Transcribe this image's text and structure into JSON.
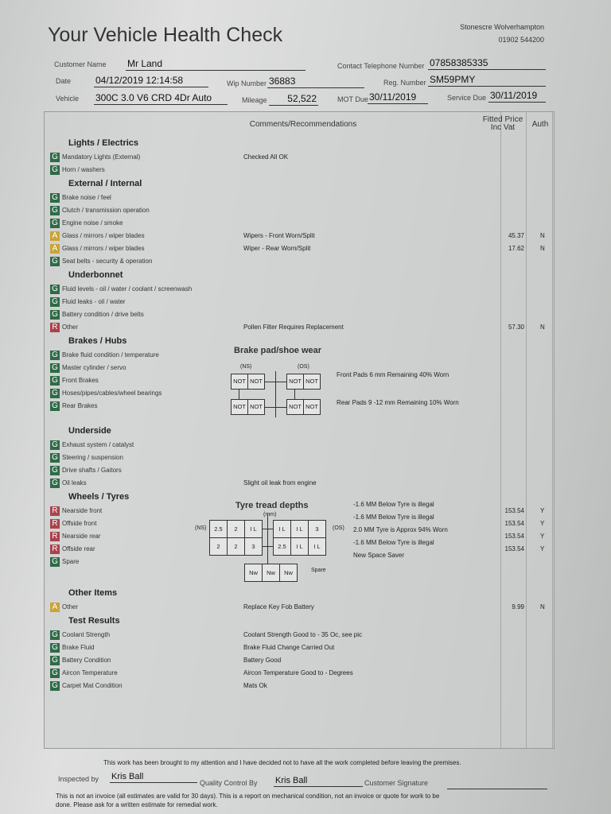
{
  "header": {
    "title": "Your Vehicle Health Check",
    "dealer": "Stonescre Wolverhampton",
    "phone": "01902 544200"
  },
  "customer": {
    "name_label": "Customer Name",
    "name": "Mr Land",
    "tel_label": "Contact Telephone Number",
    "tel": "07858385335",
    "date_label": "Date",
    "date": "04/12/2019  12:14:58",
    "wip_label": "Wip Number",
    "wip": "36883",
    "reg_label": "Reg. Number",
    "reg": "SM59PMY",
    "vehicle_label": "Vehicle",
    "vehicle": "300C 3.0 V6 CRD 4Dr Auto",
    "mileage_label": "Mileage",
    "mileage": "52,522",
    "mot_label": "MOT Due",
    "mot": "30/11/2019",
    "service_label": "Service Due",
    "service": "30/11/2019"
  },
  "table": {
    "comments_header": "Comments/Recommendations",
    "price_header": "Fitted Price Inc Vat",
    "auth_header": "Auth"
  },
  "status_colors": {
    "G": "#2f6a47",
    "A": "#c9a43a",
    "R": "#a8444a"
  },
  "sections": [
    {
      "title": "Lights / Electrics",
      "items": [
        {
          "status": "G",
          "label": "Mandatory Lights (External)",
          "comment": "Checked All OK"
        },
        {
          "status": "G",
          "label": "Horn / washers"
        }
      ]
    },
    {
      "title": "External / Internal",
      "items": [
        {
          "status": "G",
          "label": "Brake noise / feel"
        },
        {
          "status": "G",
          "label": "Clutch / transmission operation"
        },
        {
          "status": "G",
          "label": "Engine noise / smoke"
        },
        {
          "status": "A",
          "label": "Glass / mirrors / wiper blades",
          "comment": "Wipers - Front  Worn/Split",
          "price": "45.37",
          "auth": "N"
        },
        {
          "status": "A",
          "label": "Glass / mirrors / wiper blades",
          "comment": "Wiper - Rear  Worn/Split",
          "price": "17.62",
          "auth": "N"
        },
        {
          "status": "G",
          "label": "Seat belts - security & operation"
        }
      ]
    },
    {
      "title": "Underbonnet",
      "items": [
        {
          "status": "G",
          "label": "Fluid levels - oil / water / coolant / screenwash"
        },
        {
          "status": "G",
          "label": "Fluid leaks - oil / water"
        },
        {
          "status": "G",
          "label": "Battery condition / drive belts"
        },
        {
          "status": "R",
          "label": "Other",
          "comment": "Pollen Filter Requires Replacement",
          "price": "57.30",
          "auth": "N"
        }
      ]
    },
    {
      "title": "Brakes / Hubs",
      "items": [
        {
          "status": "G",
          "label": "Brake fluid condition / temperature"
        },
        {
          "status": "G",
          "label": "Master cylinder / servo"
        },
        {
          "status": "G",
          "label": "Front Brakes"
        },
        {
          "status": "G",
          "label": "Hoses/pipes/cables/wheel bearings"
        },
        {
          "status": "G",
          "label": "Rear Brakes"
        }
      ]
    },
    {
      "title": "Underside",
      "items": [
        {
          "status": "G",
          "label": "Exhaust system / catalyst"
        },
        {
          "status": "G",
          "label": "Steering / suspension"
        },
        {
          "status": "G",
          "label": "Drive shafts / Gaitors"
        },
        {
          "status": "G",
          "label": "Oil leaks",
          "comment": "Slight oil leak from engine"
        }
      ]
    },
    {
      "title": "Wheels / Tyres",
      "items": [
        {
          "status": "R",
          "label": "Nearside front",
          "price": "153.54",
          "auth": "Y"
        },
        {
          "status": "R",
          "label": "Offside front",
          "price": "153.54",
          "auth": "Y"
        },
        {
          "status": "R",
          "label": "Nearside rear",
          "price": "153.54",
          "auth": "Y"
        },
        {
          "status": "R",
          "label": "Offside rear",
          "price": "153.54",
          "auth": "Y"
        },
        {
          "status": "G",
          "label": "Spare"
        }
      ]
    },
    {
      "title": "Other Items",
      "items": [
        {
          "status": "A",
          "label": "Other",
          "comment": "Replace Key Fob Battery",
          "price": "9.99",
          "auth": "N"
        }
      ]
    },
    {
      "title": "Test Results",
      "items": [
        {
          "status": "G",
          "label": "Coolant Strength",
          "comment": "Coolant Strength Good to - 35 Oc, see pic"
        },
        {
          "status": "G",
          "label": "Brake Fluid",
          "comment": "Brake Fluid Change Carried Out"
        },
        {
          "status": "G",
          "label": "Battery Condition",
          "comment": "Battery Good"
        },
        {
          "status": "G",
          "label": "Aircon Temperature",
          "comment": "Aircon Temperature Good to -        Degrees"
        },
        {
          "status": "G",
          "label": "Carpet Mat Condition",
          "comment": "Mats Ok"
        }
      ]
    }
  ],
  "brake_diagram": {
    "title": "Brake pad/shoe wear",
    "ns_label": "(NS)",
    "os_label": "(OS)",
    "cells": [
      "NOT",
      "NOT",
      "NOT",
      "NOT",
      "NOT",
      "NOT",
      "NOT",
      "NOT"
    ],
    "front_note": "Front Pads 6 mm Remaining 40% Worn",
    "rear_note": "Rear Pads 9 -12 mm Remaining 10% Worn"
  },
  "tyre_diagram": {
    "title": "Tyre tread depths",
    "unit": "(mm)",
    "ns_label": "(NS)",
    "os_label": "(OS)",
    "front_ns": [
      "2.5",
      "2",
      "I L"
    ],
    "front_os": [
      "I L",
      "I L",
      "3"
    ],
    "rear_ns": [
      "2",
      "2",
      "3"
    ],
    "rear_os": [
      "2.5",
      "I L",
      "I L"
    ],
    "spare": [
      "Nw",
      "Nw",
      "Nw"
    ],
    "spare_label": "Spare",
    "notes": [
      "-1.6 MM Below Tyre is illegal",
      "-1.6 MM Below Tyre is illegal",
      "2.0 MM Tyre is Approx 94% Worn",
      "-1.6 MM Below Tyre is illegal",
      "New Space Saver"
    ]
  },
  "footer": {
    "declaration": "This work has been brought to my attention and I have decided not to have all the work completed before leaving the premises.",
    "inspected_label": "Inspected by",
    "inspected": "Kris Ball",
    "qc_label": "Quality Control By",
    "qc": "Kris Ball",
    "signature_label": "Customer Signature",
    "disclaimer": "This is not an invoice (all estimates are valid for 30 days). This is a report on mechanical condition, not an invoice or quote for work to be done. Please ask for a written estimate for remedial work."
  }
}
